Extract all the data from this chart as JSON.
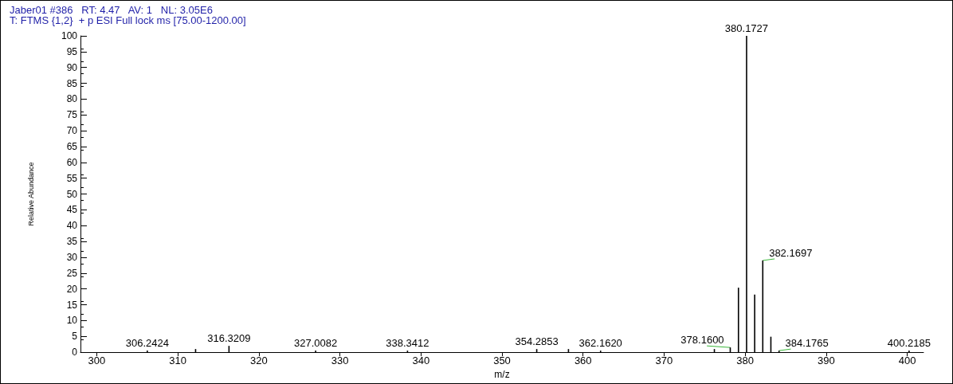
{
  "chart_data": {
    "type": "bar",
    "title": "Jaber01 #386   RT: 4.47   AV: 1   NL: 3.05E6",
    "subtitle": "T: FTMS {1,2}  + p ESI Full lock ms [75.00-1200.00]",
    "xlabel": "m/z",
    "ylabel": "Relative Abundance",
    "x": [
      306.2424,
      312.2,
      316.3209,
      327.0082,
      338.3412,
      354.2853,
      358.2,
      362.162,
      376.2,
      378.16,
      379.17,
      380.1727,
      381.17,
      382.1697,
      383.17,
      384.1765,
      400.2185
    ],
    "values": [
      0.5,
      1,
      2,
      0.5,
      0.5,
      1,
      1,
      0.5,
      1,
      1.5,
      20.4,
      100,
      18.2,
      29,
      4.9,
      0.5,
      0.5
    ],
    "color": "#000000",
    "xlim": [
      298,
      402
    ],
    "xticks": [
      300,
      310,
      320,
      330,
      340,
      350,
      360,
      370,
      380,
      390,
      400
    ],
    "ylim": [
      0,
      100
    ],
    "yticks": [
      0,
      5,
      10,
      15,
      20,
      25,
      30,
      35,
      40,
      45,
      50,
      55,
      60,
      65,
      70,
      75,
      80,
      85,
      90,
      95,
      100
    ],
    "grid": false,
    "annotations": [
      {
        "text": "306.2424",
        "x": 306.2424,
        "y": 0.5
      },
      {
        "text": "316.3209",
        "x": 316.3209,
        "y": 2
      },
      {
        "text": "327.0082",
        "x": 327.0082,
        "y": 0.5
      },
      {
        "text": "338.3412",
        "x": 338.3412,
        "y": 0.5
      },
      {
        "text": "354.2853",
        "x": 354.2853,
        "y": 1
      },
      {
        "text": "362.1620",
        "x": 362.162,
        "y": 0.5
      },
      {
        "text": "378.1600",
        "x": 378.16,
        "y": 1.5
      },
      {
        "text": "380.1727",
        "x": 380.1727,
        "y": 100
      },
      {
        "text": "382.1697",
        "x": 382.1697,
        "y": 29
      },
      {
        "text": "384.1765",
        "x": 384.1765,
        "y": 0.5
      },
      {
        "text": "400.2185",
        "x": 400.2185,
        "y": 0.5
      }
    ]
  }
}
